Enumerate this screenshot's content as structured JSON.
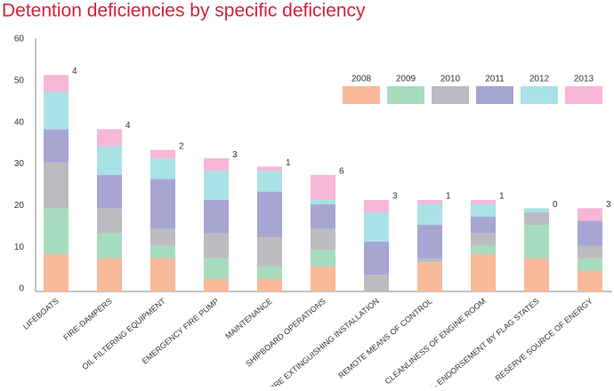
{
  "chart_data": {
    "type": "stacked_bar",
    "title": "Detention deficiencies by specific deficiency",
    "categories": [
      "LIFEBOATS",
      "FIRE-DAMPERS",
      "OIL FILTERING EQUIPMENT",
      "EMERGENCY FIRE PUMP",
      "MAINTENANCE",
      "SHIPBOARD OPERATIONS",
      "FIXED FIRE EXTINGUISHING INSTALLATION",
      "REMOTE MEANS OF CONTROL",
      "CLEANLINESS OF ENGINE ROOM",
      "STCW - ENDORSEMENT BY FLAG STATES",
      "RESERVE SOURCE OF ENERGY"
    ],
    "series": [
      {
        "name": "2008",
        "color": "#f9b99b",
        "values": [
          9,
          8,
          8,
          3,
          3,
          6,
          0,
          7,
          9,
          8,
          5
        ]
      },
      {
        "name": "2009",
        "color": "#a8dcbf",
        "values": [
          11,
          6,
          3,
          5,
          3,
          4,
          0,
          0,
          2,
          8,
          3
        ]
      },
      {
        "name": "2010",
        "color": "#bcbcc0",
        "values": [
          11,
          6,
          4,
          6,
          7,
          5,
          4,
          1,
          3,
          3,
          3
        ]
      },
      {
        "name": "2011",
        "color": "#a8a5d3",
        "values": [
          8,
          8,
          12,
          8,
          11,
          6,
          8,
          8,
          4,
          0,
          6
        ]
      },
      {
        "name": "2012",
        "color": "#a9e2e6",
        "values": [
          9,
          7,
          5,
          7,
          5,
          1,
          7,
          5,
          3,
          1,
          0
        ]
      },
      {
        "name": "2013",
        "color": "#f8b6d6",
        "values": [
          4,
          4,
          2,
          3,
          1,
          6,
          3,
          1,
          1,
          0,
          3
        ]
      }
    ],
    "data_labels_series": 5,
    "ylim": [
      0,
      60
    ],
    "yticks": [
      0,
      10,
      20,
      30,
      40,
      50,
      60
    ],
    "grid": false
  }
}
